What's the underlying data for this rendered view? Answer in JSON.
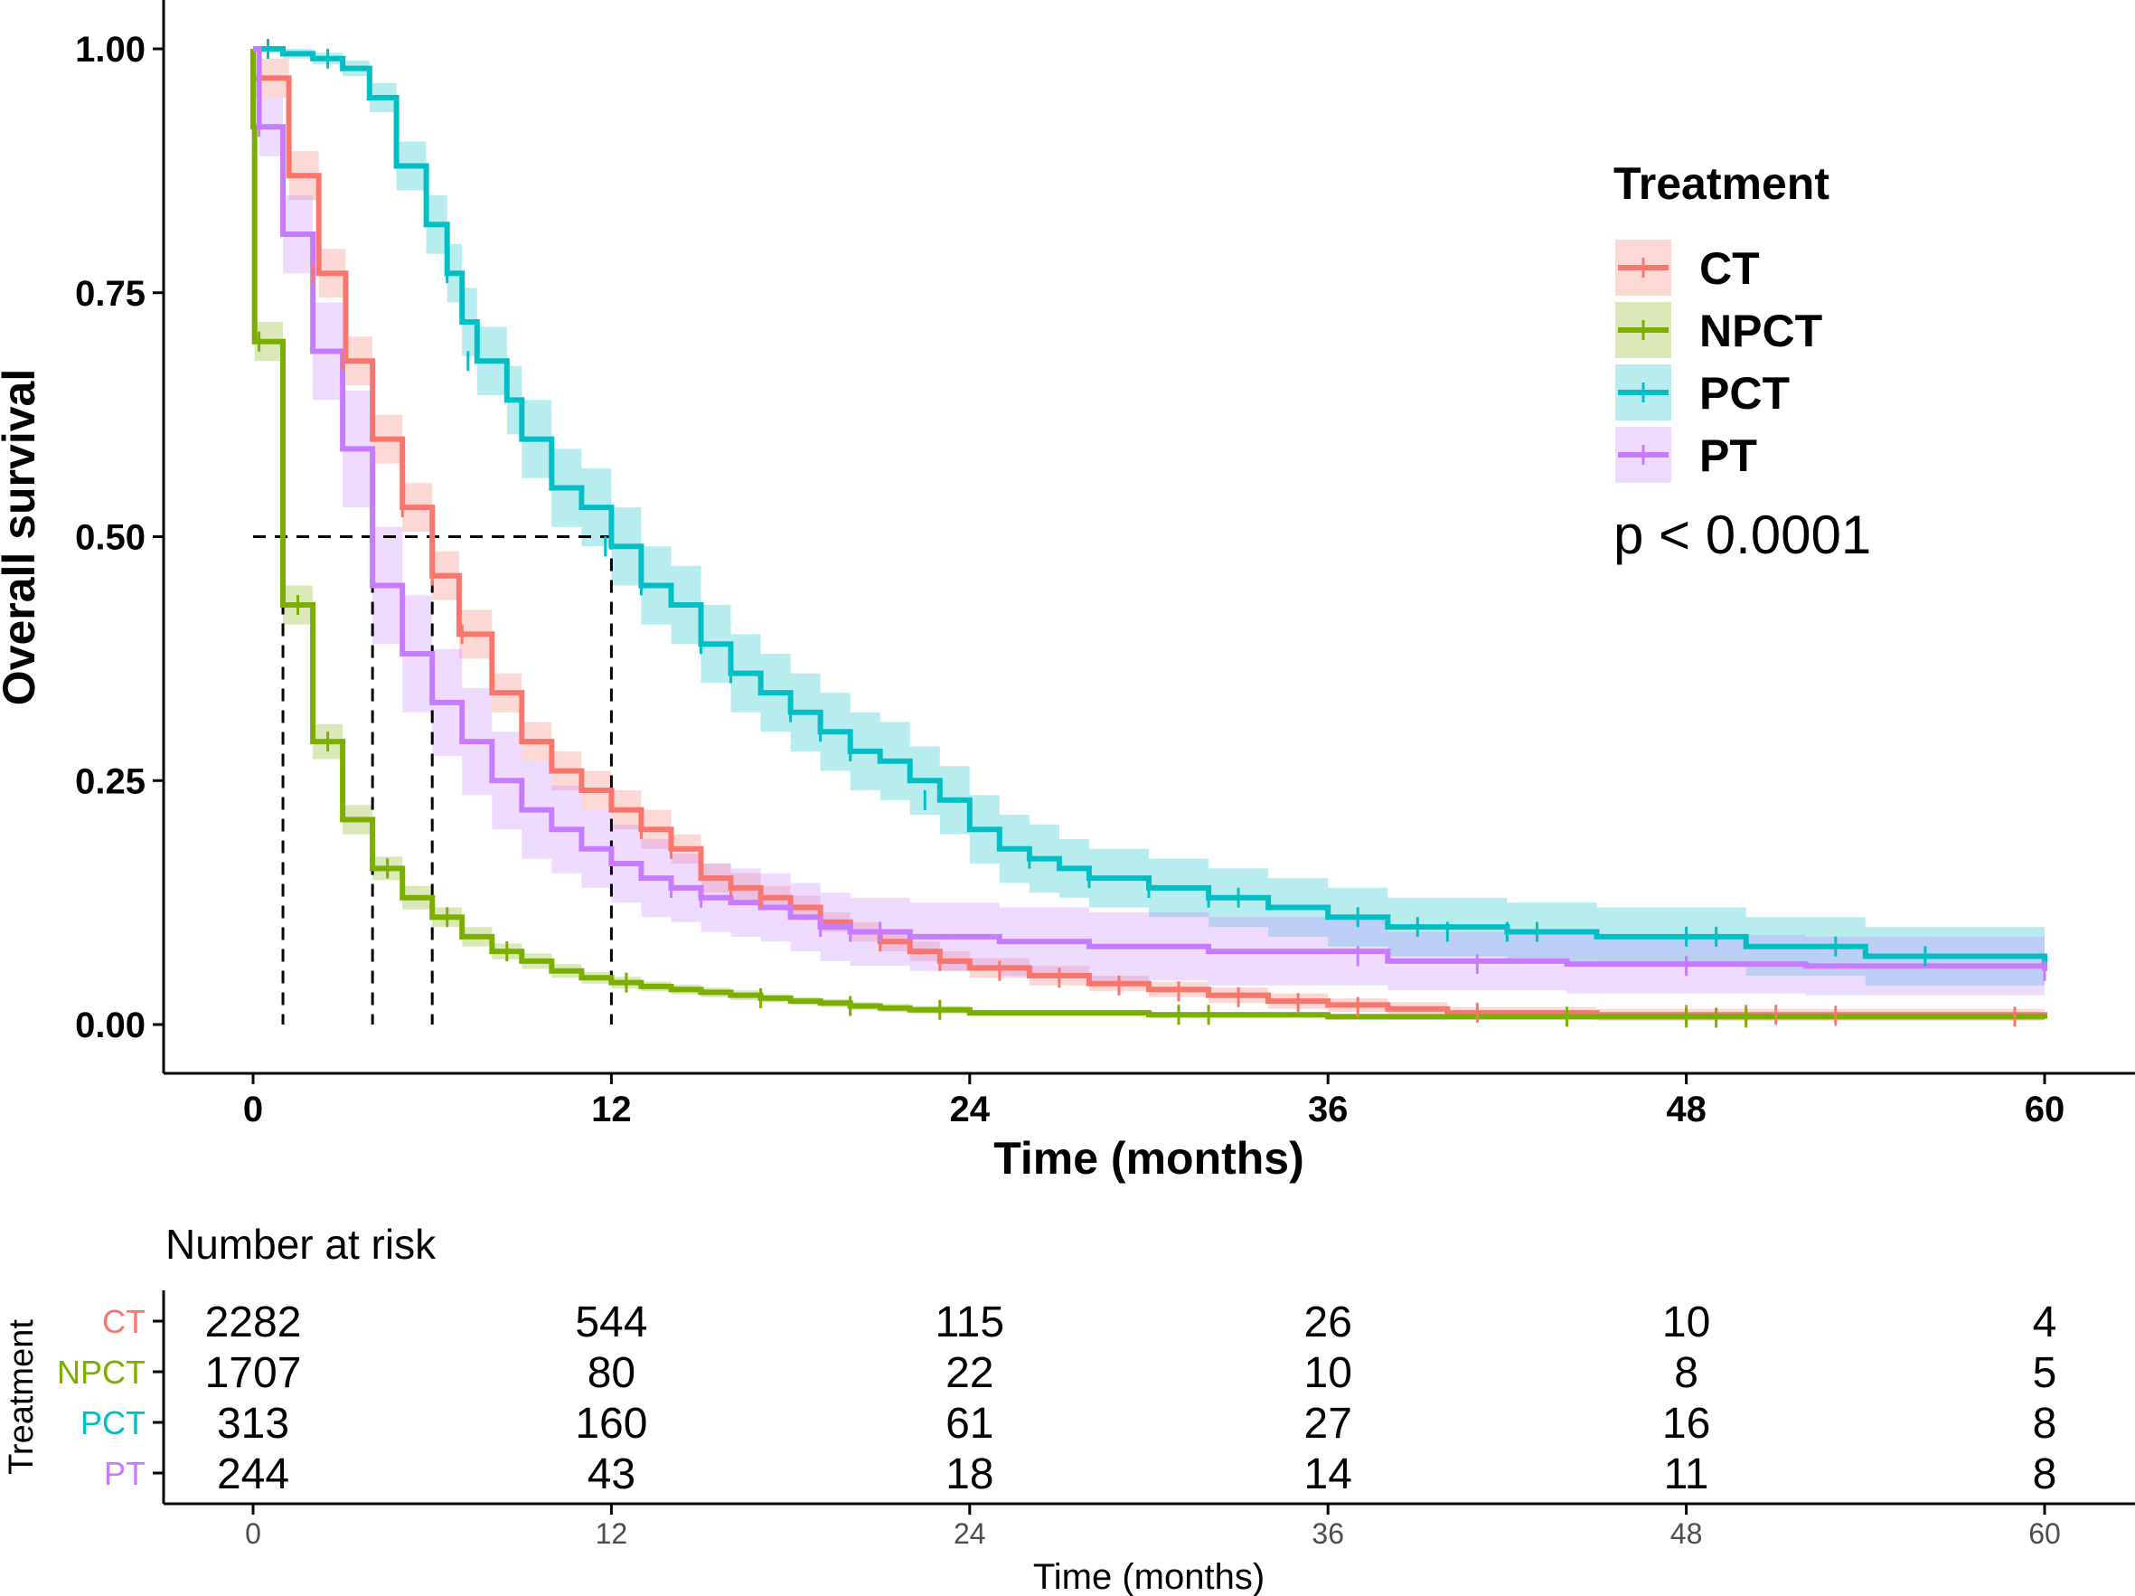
{
  "chart_data": {
    "type": "line",
    "subtype": "kaplan-meier",
    "title": "",
    "xlabel": "Time (months)",
    "ylabel": "Overall survival",
    "xlim": [
      0,
      60
    ],
    "ylim": [
      0,
      1
    ],
    "x_ticks": [
      "0",
      "12",
      "24",
      "36",
      "48",
      "60"
    ],
    "y_ticks": [
      "0.00",
      "0.25",
      "0.50",
      "0.75",
      "1.00"
    ],
    "legend": {
      "title": "Treatment",
      "position": "top-right"
    },
    "p_value_text": "p < 0.0001",
    "median_line_y": 0.5,
    "medians": [
      {
        "series": "NPCT",
        "x": 1.0
      },
      {
        "series": "PT",
        "x": 4.0
      },
      {
        "series": "CT",
        "x": 6.0
      },
      {
        "series": "PCT",
        "x": 12.0
      }
    ],
    "series": [
      {
        "name": "CT",
        "color": "#F8766D",
        "steps": [
          [
            0,
            0.97
          ],
          [
            1.2,
            0.87
          ],
          [
            2.2,
            0.77
          ],
          [
            3.1,
            0.68
          ],
          [
            4.0,
            0.6
          ],
          [
            5.0,
            0.53
          ],
          [
            6.0,
            0.46
          ],
          [
            6.9,
            0.4
          ],
          [
            8.0,
            0.34
          ],
          [
            9.0,
            0.29
          ],
          [
            10.0,
            0.26
          ],
          [
            11.0,
            0.24
          ],
          [
            12.0,
            0.22
          ],
          [
            13.0,
            0.2
          ],
          [
            14.0,
            0.18
          ],
          [
            15.0,
            0.15
          ],
          [
            16.0,
            0.14
          ],
          [
            17.0,
            0.13
          ],
          [
            18.0,
            0.12
          ],
          [
            19.0,
            0.105
          ],
          [
            20.0,
            0.095
          ],
          [
            21.0,
            0.085
          ],
          [
            22.0,
            0.075
          ],
          [
            23.0,
            0.065
          ],
          [
            24.0,
            0.058
          ],
          [
            26.0,
            0.05
          ],
          [
            28.0,
            0.042
          ],
          [
            30.0,
            0.036
          ],
          [
            32.0,
            0.03
          ],
          [
            34.0,
            0.024
          ],
          [
            36.0,
            0.02
          ],
          [
            38.0,
            0.016
          ],
          [
            40.0,
            0.012
          ],
          [
            45.0,
            0.01
          ],
          [
            60.0,
            0.008
          ]
        ],
        "ci_width": [
          0.02,
          0.025,
          0.025,
          0.025,
          0.025,
          0.025,
          0.025,
          0.025,
          0.02,
          0.02,
          0.02,
          0.02,
          0.02,
          0.02,
          0.015,
          0.015,
          0.015,
          0.012,
          0.012,
          0.01,
          0.01,
          0.01,
          0.01,
          0.01,
          0.01,
          0.01,
          0.008,
          0.008,
          0.008,
          0.008,
          0.007,
          0.007,
          0.006,
          0.006,
          0.006
        ],
        "censors": [
          [
            2,
            0.77
          ],
          [
            3,
            0.68
          ],
          [
            5,
            0.53
          ],
          [
            6,
            0.46
          ],
          [
            7,
            0.4
          ],
          [
            13,
            0.2
          ],
          [
            14,
            0.18
          ],
          [
            16,
            0.14
          ],
          [
            17,
            0.13
          ],
          [
            19,
            0.105
          ],
          [
            21,
            0.085
          ],
          [
            23,
            0.065
          ],
          [
            25,
            0.055
          ],
          [
            27,
            0.048
          ],
          [
            29,
            0.04
          ],
          [
            31,
            0.034
          ],
          [
            33,
            0.028
          ],
          [
            35,
            0.022
          ],
          [
            37,
            0.018
          ],
          [
            41,
            0.012
          ],
          [
            48,
            0.01
          ],
          [
            50,
            0.01
          ],
          [
            51,
            0.01
          ],
          [
            53,
            0.009
          ],
          [
            59,
            0.008
          ]
        ]
      },
      {
        "name": "NPCT",
        "color": "#7CAE00",
        "steps": [
          [
            0,
            0.92
          ],
          [
            0.05,
            0.7
          ],
          [
            1.0,
            0.43
          ],
          [
            2.0,
            0.29
          ],
          [
            3.0,
            0.21
          ],
          [
            4.0,
            0.16
          ],
          [
            5.0,
            0.13
          ],
          [
            6.0,
            0.11
          ],
          [
            7.0,
            0.09
          ],
          [
            8.0,
            0.075
          ],
          [
            9.0,
            0.065
          ],
          [
            10.0,
            0.055
          ],
          [
            11.0,
            0.048
          ],
          [
            12.0,
            0.043
          ],
          [
            13.0,
            0.039
          ],
          [
            14.0,
            0.036
          ],
          [
            15.0,
            0.033
          ],
          [
            16.0,
            0.03
          ],
          [
            17.0,
            0.027
          ],
          [
            18.0,
            0.024
          ],
          [
            19.0,
            0.022
          ],
          [
            20.0,
            0.019
          ],
          [
            21.0,
            0.017
          ],
          [
            22.0,
            0.015
          ],
          [
            24.0,
            0.012
          ],
          [
            30.0,
            0.01
          ],
          [
            36.0,
            0.008
          ],
          [
            60.0,
            0.006
          ]
        ],
        "ci_width": [
          0.02,
          0.02,
          0.02,
          0.018,
          0.015,
          0.012,
          0.012,
          0.01,
          0.01,
          0.008,
          0.008,
          0.007,
          0.006,
          0.006,
          0.005,
          0.005,
          0.005,
          0.005,
          0.004,
          0.004,
          0.004,
          0.004,
          0.004,
          0.004,
          0.003,
          0.003,
          0.003,
          0.003
        ],
        "censors": [
          [
            0.2,
            0.7
          ],
          [
            1.5,
            0.43
          ],
          [
            2.5,
            0.29
          ],
          [
            4.5,
            0.16
          ],
          [
            6.5,
            0.11
          ],
          [
            8.5,
            0.075
          ],
          [
            12.5,
            0.043
          ],
          [
            17,
            0.027
          ],
          [
            20,
            0.019
          ],
          [
            23,
            0.015
          ],
          [
            31,
            0.01
          ],
          [
            32,
            0.01
          ],
          [
            44,
            0.008
          ],
          [
            48,
            0.007
          ],
          [
            49,
            0.007
          ],
          [
            50,
            0.007
          ]
        ]
      },
      {
        "name": "PCT",
        "color": "#00BFC4",
        "steps": [
          [
            0,
            1.0
          ],
          [
            1.0,
            0.995
          ],
          [
            2.0,
            0.99
          ],
          [
            3.0,
            0.98
          ],
          [
            3.9,
            0.95
          ],
          [
            4.8,
            0.88
          ],
          [
            5.0,
            0.88
          ],
          [
            5.8,
            0.82
          ],
          [
            6.5,
            0.77
          ],
          [
            7.0,
            0.72
          ],
          [
            7.5,
            0.68
          ],
          [
            8.0,
            0.68
          ],
          [
            8.5,
            0.64
          ],
          [
            9.0,
            0.6
          ],
          [
            10.0,
            0.55
          ],
          [
            11.0,
            0.53
          ],
          [
            12.0,
            0.49
          ],
          [
            13.0,
            0.45
          ],
          [
            14.0,
            0.43
          ],
          [
            15.0,
            0.39
          ],
          [
            16.0,
            0.36
          ],
          [
            17.0,
            0.34
          ],
          [
            18.0,
            0.32
          ],
          [
            19.0,
            0.3
          ],
          [
            20.0,
            0.28
          ],
          [
            21.0,
            0.27
          ],
          [
            22.0,
            0.25
          ],
          [
            23.0,
            0.23
          ],
          [
            24.0,
            0.2
          ],
          [
            25.0,
            0.18
          ],
          [
            26.0,
            0.17
          ],
          [
            27.0,
            0.16
          ],
          [
            28.0,
            0.15
          ],
          [
            30.0,
            0.14
          ],
          [
            32.0,
            0.13
          ],
          [
            34.0,
            0.12
          ],
          [
            36.0,
            0.11
          ],
          [
            38.0,
            0.1
          ],
          [
            42.0,
            0.095
          ],
          [
            45.0,
            0.09
          ],
          [
            50.0,
            0.08
          ],
          [
            54.0,
            0.07
          ],
          [
            60.0,
            0.06
          ]
        ],
        "ci_width": [
          0.004,
          0.005,
          0.006,
          0.008,
          0.015,
          0.025,
          0.025,
          0.03,
          0.03,
          0.035,
          0.035,
          0.035,
          0.035,
          0.04,
          0.04,
          0.04,
          0.04,
          0.04,
          0.04,
          0.04,
          0.04,
          0.04,
          0.04,
          0.04,
          0.04,
          0.04,
          0.035,
          0.035,
          0.035,
          0.035,
          0.035,
          0.03,
          0.03,
          0.03,
          0.03,
          0.03,
          0.03,
          0.03,
          0.03,
          0.03,
          0.03,
          0.03,
          0.03
        ],
        "censors": [
          [
            0.5,
            1.0
          ],
          [
            2.5,
            0.99
          ],
          [
            6.5,
            0.77
          ],
          [
            7.2,
            0.68
          ],
          [
            11.8,
            0.49
          ],
          [
            13,
            0.45
          ],
          [
            15,
            0.39
          ],
          [
            16,
            0.36
          ],
          [
            18,
            0.32
          ],
          [
            19,
            0.3
          ],
          [
            20,
            0.28
          ],
          [
            22.5,
            0.23
          ],
          [
            26,
            0.17
          ],
          [
            28,
            0.15
          ],
          [
            30,
            0.14
          ],
          [
            32,
            0.13
          ],
          [
            33,
            0.13
          ],
          [
            37,
            0.11
          ],
          [
            39,
            0.1
          ],
          [
            40,
            0.095
          ],
          [
            42,
            0.095
          ],
          [
            43,
            0.095
          ],
          [
            48,
            0.09
          ],
          [
            49,
            0.09
          ],
          [
            53,
            0.08
          ],
          [
            56,
            0.07
          ],
          [
            60,
            0.06
          ]
        ]
      },
      {
        "name": "PT",
        "color": "#C77CFF",
        "steps": [
          [
            0,
            1.0
          ],
          [
            0.2,
            0.92
          ],
          [
            1.0,
            0.81
          ],
          [
            2.0,
            0.69
          ],
          [
            3.0,
            0.59
          ],
          [
            4.0,
            0.45
          ],
          [
            5.0,
            0.38
          ],
          [
            6.0,
            0.33
          ],
          [
            7.0,
            0.29
          ],
          [
            8.0,
            0.25
          ],
          [
            9.0,
            0.22
          ],
          [
            10.0,
            0.2
          ],
          [
            11.0,
            0.18
          ],
          [
            12.0,
            0.165
          ],
          [
            13.0,
            0.15
          ],
          [
            14.0,
            0.14
          ],
          [
            15.0,
            0.13
          ],
          [
            16.0,
            0.125
          ],
          [
            17.0,
            0.12
          ],
          [
            18.0,
            0.11
          ],
          [
            19.0,
            0.1
          ],
          [
            20.0,
            0.095
          ],
          [
            22.0,
            0.09
          ],
          [
            25.0,
            0.085
          ],
          [
            28.0,
            0.08
          ],
          [
            32.0,
            0.075
          ],
          [
            38.0,
            0.065
          ],
          [
            44.0,
            0.062
          ],
          [
            52.0,
            0.06
          ],
          [
            60.0,
            0.055
          ]
        ],
        "ci_width": [
          0.0,
          0.03,
          0.04,
          0.05,
          0.06,
          0.06,
          0.06,
          0.055,
          0.055,
          0.05,
          0.05,
          0.045,
          0.04,
          0.04,
          0.04,
          0.035,
          0.035,
          0.035,
          0.035,
          0.035,
          0.035,
          0.035,
          0.035,
          0.035,
          0.035,
          0.035,
          0.03,
          0.03,
          0.03,
          0.03
        ],
        "censors": [
          [
            0.2,
            0.92
          ],
          [
            14,
            0.14
          ],
          [
            15,
            0.13
          ],
          [
            19,
            0.1
          ],
          [
            20,
            0.095
          ],
          [
            21,
            0.095
          ],
          [
            37,
            0.07
          ],
          [
            41,
            0.062
          ],
          [
            48,
            0.06
          ],
          [
            60,
            0.055
          ]
        ]
      }
    ],
    "risk_table": {
      "title": "Number at risk",
      "ylabel": "Treatment",
      "xlabel": "Time (months)",
      "times": [
        "0",
        "12",
        "24",
        "36",
        "48",
        "60"
      ],
      "rows": [
        {
          "name": "CT",
          "color": "#F8766D",
          "counts": [
            "2282",
            "544",
            "115",
            "26",
            "10",
            "4"
          ]
        },
        {
          "name": "NPCT",
          "color": "#7CAE00",
          "counts": [
            "1707",
            "80",
            "22",
            "10",
            "8",
            "5"
          ]
        },
        {
          "name": "PCT",
          "color": "#00BFC4",
          "counts": [
            "313",
            "160",
            "61",
            "27",
            "16",
            "8"
          ]
        },
        {
          "name": "PT",
          "color": "#C77CFF",
          "counts": [
            "244",
            "43",
            "18",
            "14",
            "11",
            "8"
          ]
        }
      ]
    }
  }
}
